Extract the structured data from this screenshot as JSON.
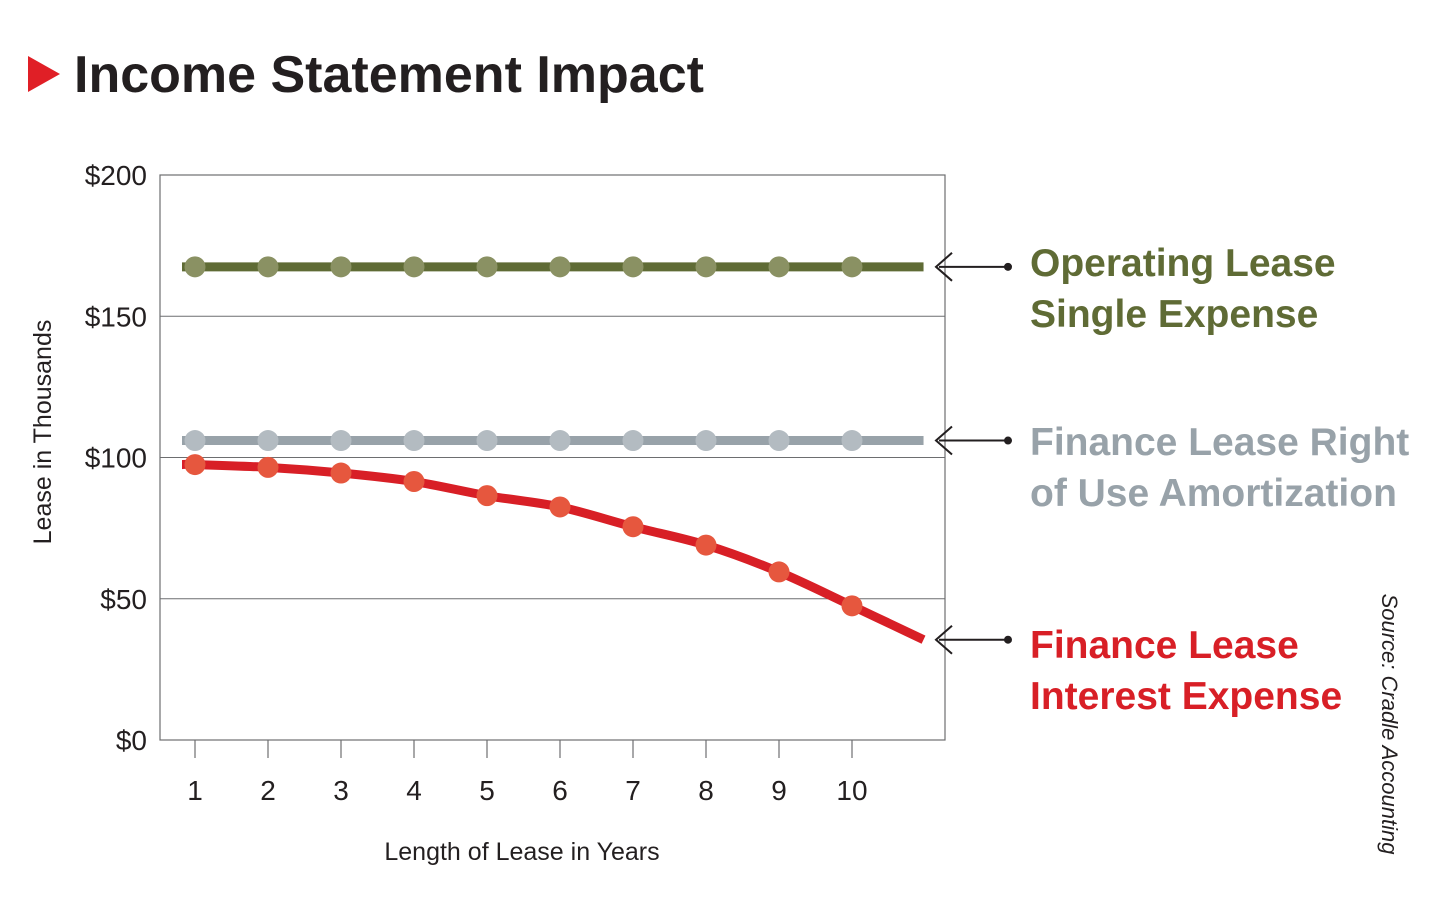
{
  "title": "Income Statement Impact",
  "source": "Source: Cradle Accounting",
  "colors": {
    "accent": "#e01f26",
    "operating": "#5f6b35",
    "operating_marker": "#8a9163",
    "amortization": "#98a2a9",
    "amortization_marker": "#b3bbc1",
    "interest": "#d81f26",
    "interest_marker": "#e6573e",
    "text": "#231f20"
  },
  "chart_data": {
    "type": "line",
    "xlabel": "Length of Lease in Years",
    "ylabel": "Lease in Thousands",
    "x": [
      1,
      2,
      3,
      4,
      5,
      6,
      7,
      8,
      9,
      10
    ],
    "x_tick_labels": [
      "1",
      "2",
      "3",
      "4",
      "5",
      "6",
      "7",
      "8",
      "9",
      "10"
    ],
    "ylim": [
      0,
      200
    ],
    "y_ticks": [
      0,
      50,
      100,
      150,
      200
    ],
    "y_tick_labels": [
      "$0",
      "$50",
      "$100",
      "$150",
      "$200"
    ],
    "grid": "horizontal",
    "line_extends_to_x": 10.98,
    "series": [
      {
        "name": "Operating Lease Single Expense",
        "legend_lines": [
          "Operating Lease",
          "Single Expense"
        ],
        "values": [
          167.5,
          167.5,
          167.5,
          167.5,
          167.5,
          167.5,
          167.5,
          167.5,
          167.5,
          167.5
        ],
        "end_value": 167.5,
        "color": "#5f6b35",
        "marker_color": "#8a9163"
      },
      {
        "name": "Finance Lease Right of Use Amortization",
        "legend_lines": [
          "Finance Lease Right",
          "of Use Amortization"
        ],
        "values": [
          106,
          106,
          106,
          106,
          106,
          106,
          106,
          106,
          106,
          106
        ],
        "end_value": 106,
        "color": "#98a2a9",
        "marker_color": "#b3bbc1"
      },
      {
        "name": "Finance Lease Interest Expense",
        "legend_lines": [
          "Finance Lease",
          "Interest Expense"
        ],
        "values": [
          97.5,
          96.5,
          94.5,
          91.5,
          86.5,
          82.5,
          75.5,
          69,
          59.5,
          47.5
        ],
        "end_value": 35.5,
        "color": "#d81f26",
        "marker_color": "#e6573e"
      }
    ]
  }
}
